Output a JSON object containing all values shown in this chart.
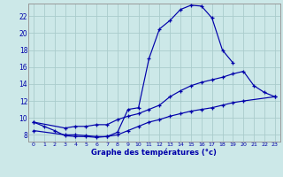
{
  "xlabel": "Graphe des températures (°c)",
  "bg_color": "#cce8e8",
  "grid_color": "#aacccc",
  "line_color": "#0000aa",
  "xlim": [
    -0.5,
    23.5
  ],
  "ylim": [
    7.2,
    23.5
  ],
  "yticks": [
    8,
    10,
    12,
    14,
    16,
    18,
    20,
    22
  ],
  "xticks": [
    0,
    1,
    2,
    3,
    4,
    5,
    6,
    7,
    8,
    9,
    10,
    11,
    12,
    13,
    14,
    15,
    16,
    17,
    18,
    19,
    20,
    21,
    22,
    23
  ],
  "line1_x": [
    0,
    1,
    2,
    3,
    4,
    5,
    6,
    7,
    8,
    9,
    10,
    11,
    12,
    13,
    14,
    15,
    16,
    17,
    18,
    19
  ],
  "line1_y": [
    9.5,
    9.0,
    8.5,
    7.9,
    7.8,
    7.8,
    7.7,
    7.8,
    8.3,
    11.0,
    11.2,
    17.0,
    20.5,
    21.5,
    22.8,
    23.3,
    23.2,
    21.8,
    18.0,
    16.5
  ],
  "line2_x": [
    0,
    3,
    4,
    5,
    6,
    7,
    8,
    9,
    10,
    11,
    12,
    13,
    14,
    15,
    16,
    17,
    18,
    19,
    20,
    21,
    22,
    23
  ],
  "line2_y": [
    9.5,
    8.8,
    9.0,
    9.0,
    9.2,
    9.2,
    9.8,
    10.2,
    10.5,
    11.0,
    11.5,
    12.5,
    13.2,
    13.8,
    14.2,
    14.5,
    14.8,
    15.2,
    15.5,
    13.8,
    13.0,
    12.5
  ],
  "line3_x": [
    0,
    3,
    4,
    5,
    6,
    7,
    8,
    9,
    10,
    11,
    12,
    13,
    14,
    15,
    16,
    17,
    18,
    19,
    20,
    23
  ],
  "line3_y": [
    8.5,
    8.0,
    8.0,
    7.9,
    7.8,
    7.8,
    8.0,
    8.5,
    9.0,
    9.5,
    9.8,
    10.2,
    10.5,
    10.8,
    11.0,
    11.2,
    11.5,
    11.8,
    12.0,
    12.5
  ]
}
